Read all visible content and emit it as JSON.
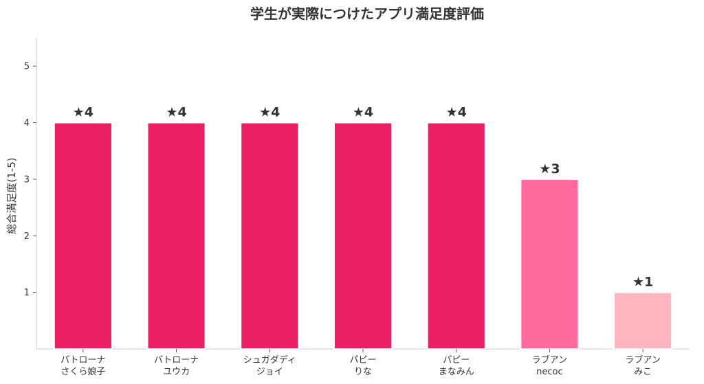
{
  "chart_data": {
    "type": "bar",
    "title": "学生が実際につけたアプリ満足度評価",
    "xlabel": "",
    "ylabel": "総合満足度(1-5)",
    "ylim": [
      0,
      5.5
    ],
    "yticks": [
      1,
      2,
      3,
      4,
      5
    ],
    "grid": false,
    "categories": [
      [
        "パトローナ",
        "さくら娘子"
      ],
      [
        "パトローナ",
        "ユウカ"
      ],
      [
        "シュガダディ",
        "ジョイ"
      ],
      [
        "パピー",
        "りな"
      ],
      [
        "パピー",
        "まなみん"
      ],
      [
        "ラブアン",
        "necoc"
      ],
      [
        "ラブアン",
        "みこ"
      ]
    ],
    "values": [
      4,
      4,
      4,
      4,
      4,
      3,
      1
    ],
    "data_labels": [
      "★4",
      "★4",
      "★4",
      "★4",
      "★4",
      "★3",
      "★1"
    ],
    "bar_colors": [
      "#e91e63",
      "#e91e63",
      "#e91e63",
      "#e91e63",
      "#e91e63",
      "#ff6b9d",
      "#ffb6c1"
    ],
    "axis_color": "#cccccc",
    "text_color": "#333333"
  }
}
